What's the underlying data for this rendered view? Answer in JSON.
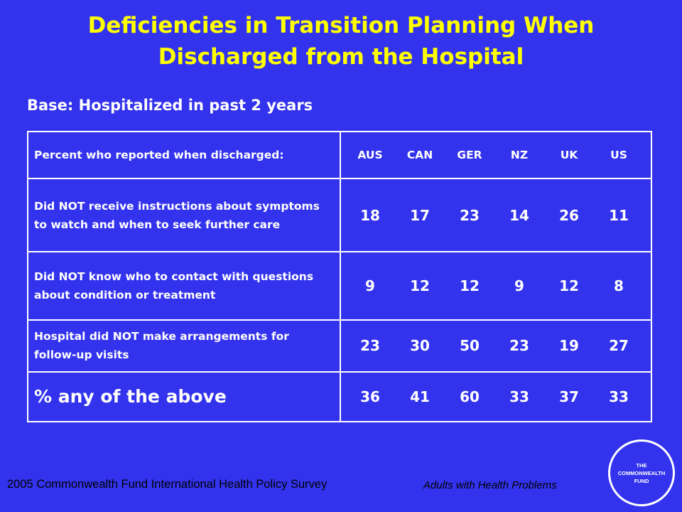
{
  "title": {
    "line1": "Deficiencies in Transition Planning When",
    "line2": "Discharged from the Hospital"
  },
  "subtitle": "Base: Hospitalized in past 2 years",
  "table": {
    "header_label": "Percent who reported when discharged:",
    "columns": [
      "AUS",
      "CAN",
      "GER",
      "NZ",
      "UK",
      "US"
    ],
    "rows": [
      {
        "label": "Did NOT receive instructions about symptoms to watch and when to seek further care",
        "values": [
          "18",
          "17",
          "23",
          "14",
          "26",
          "11"
        ]
      },
      {
        "label": "Did NOT know who to contact with questions about condition or treatment",
        "values": [
          "9",
          "12",
          "12",
          "9",
          "12",
          "8"
        ]
      },
      {
        "label": "Hospital did NOT make arrangements for follow-up visits",
        "values": [
          "23",
          "30",
          "50",
          "23",
          "19",
          "27"
        ]
      },
      {
        "label": "% any of the above",
        "values": [
          "36",
          "41",
          "60",
          "33",
          "37",
          "33"
        ]
      }
    ]
  },
  "footer": {
    "source": "2005 Commonwealth Fund International Health Policy Survey",
    "population": "Adults with Health Problems"
  },
  "logo": {
    "line1": "THE",
    "line2": "COMMONWEALTH",
    "line3": "FUND"
  },
  "colors": {
    "background": "#3333ee",
    "title": "#ffff00",
    "text": "#ffffff",
    "footer_text": "#000000"
  }
}
